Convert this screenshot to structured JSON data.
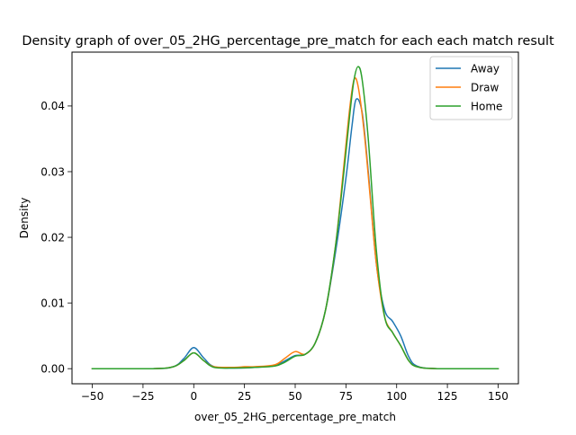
{
  "chart_data": {
    "type": "line",
    "title": "Density graph of over_05_2HG_percentage_pre_match for each each match result",
    "xlabel": "over_05_2HG_percentage_pre_match",
    "ylabel": "Density",
    "xlim": [
      -60,
      160
    ],
    "ylim": [
      -0.0023,
      0.0482
    ],
    "xticks": [
      -50,
      -25,
      0,
      25,
      50,
      75,
      100,
      125,
      150
    ],
    "xtick_labels": [
      "−50",
      "−25",
      "0",
      "25",
      "50",
      "75",
      "100",
      "125",
      "150"
    ],
    "yticks": [
      0.0,
      0.01,
      0.02,
      0.03,
      0.04
    ],
    "ytick_labels": [
      "0.00",
      "0.01",
      "0.02",
      "0.03",
      "0.04"
    ],
    "grid": false,
    "legend_position": "top-right",
    "series": [
      {
        "name": "Away",
        "color": "#1f77b4",
        "points": [
          [
            -50,
            0.0
          ],
          [
            -20,
            0.0
          ],
          [
            -10,
            0.0003
          ],
          [
            -5,
            0.0015
          ],
          [
            0,
            0.0032
          ],
          [
            5,
            0.0016
          ],
          [
            10,
            0.0003
          ],
          [
            20,
            0.0001
          ],
          [
            30,
            0.0002
          ],
          [
            40,
            0.0005
          ],
          [
            45,
            0.0012
          ],
          [
            50,
            0.002
          ],
          [
            55,
            0.0022
          ],
          [
            60,
            0.004
          ],
          [
            65,
            0.009
          ],
          [
            70,
            0.018
          ],
          [
            75,
            0.029
          ],
          [
            78,
            0.037
          ],
          [
            80,
            0.041
          ],
          [
            83,
            0.039
          ],
          [
            86,
            0.03
          ],
          [
            90,
            0.016
          ],
          [
            94,
            0.009
          ],
          [
            98,
            0.0072
          ],
          [
            102,
            0.005
          ],
          [
            106,
            0.0018
          ],
          [
            110,
            0.0004
          ],
          [
            120,
            0.0
          ],
          [
            150,
            0.0
          ]
        ]
      },
      {
        "name": "Draw",
        "color": "#ff7f0e",
        "points": [
          [
            -50,
            0.0
          ],
          [
            -20,
            0.0
          ],
          [
            -10,
            0.0003
          ],
          [
            -5,
            0.0012
          ],
          [
            0,
            0.0024
          ],
          [
            5,
            0.0012
          ],
          [
            10,
            0.0003
          ],
          [
            20,
            0.0002
          ],
          [
            25,
            0.0003
          ],
          [
            30,
            0.0003
          ],
          [
            40,
            0.0006
          ],
          [
            45,
            0.0016
          ],
          [
            50,
            0.0026
          ],
          [
            55,
            0.0022
          ],
          [
            60,
            0.004
          ],
          [
            65,
            0.009
          ],
          [
            70,
            0.019
          ],
          [
            74,
            0.031
          ],
          [
            77,
            0.04
          ],
          [
            79,
            0.044
          ],
          [
            81,
            0.043
          ],
          [
            84,
            0.036
          ],
          [
            87,
            0.026
          ],
          [
            90,
            0.016
          ],
          [
            94,
            0.008
          ],
          [
            98,
            0.0055
          ],
          [
            102,
            0.0035
          ],
          [
            106,
            0.0012
          ],
          [
            110,
            0.0003
          ],
          [
            120,
            0.0
          ],
          [
            150,
            0.0
          ]
        ]
      },
      {
        "name": "Home",
        "color": "#2ca02c",
        "points": [
          [
            -50,
            0.0
          ],
          [
            -20,
            0.0
          ],
          [
            -10,
            0.0003
          ],
          [
            -5,
            0.0012
          ],
          [
            0,
            0.0024
          ],
          [
            5,
            0.0012
          ],
          [
            10,
            0.0002
          ],
          [
            20,
            0.0001
          ],
          [
            30,
            0.0002
          ],
          [
            40,
            0.0004
          ],
          [
            45,
            0.001
          ],
          [
            50,
            0.0019
          ],
          [
            55,
            0.0022
          ],
          [
            60,
            0.004
          ],
          [
            65,
            0.009
          ],
          [
            70,
            0.019
          ],
          [
            74,
            0.03
          ],
          [
            77,
            0.039
          ],
          [
            79,
            0.044
          ],
          [
            81,
            0.046
          ],
          [
            83,
            0.044
          ],
          [
            86,
            0.035
          ],
          [
            90,
            0.018
          ],
          [
            94,
            0.008
          ],
          [
            98,
            0.0055
          ],
          [
            102,
            0.0035
          ],
          [
            106,
            0.0012
          ],
          [
            110,
            0.0003
          ],
          [
            120,
            0.0
          ],
          [
            150,
            0.0
          ]
        ]
      }
    ]
  }
}
